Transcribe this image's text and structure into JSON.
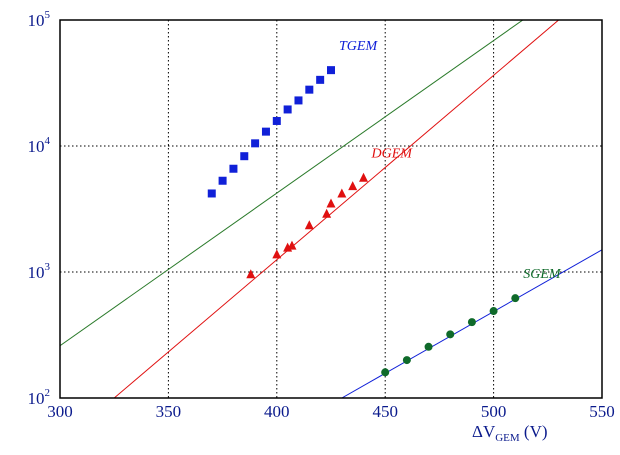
{
  "chart_data": {
    "type": "scatter",
    "xlim": [
      300,
      550
    ],
    "ylim": [
      100,
      100000
    ],
    "ylog": true,
    "grid": true,
    "x_ticks": [
      300,
      350,
      400,
      450,
      500,
      550
    ],
    "y_ticks": [
      {
        "value": 100,
        "base": "10",
        "exp": "2"
      },
      {
        "value": 1000,
        "base": "10",
        "exp": "3"
      },
      {
        "value": 10000,
        "base": "10",
        "exp": "4"
      },
      {
        "value": 100000,
        "base": "10",
        "exp": "5"
      }
    ],
    "xlabel": {
      "delta": "Δ",
      "main": "V",
      "sub": "GEM",
      "unit": " (V)"
    },
    "series": [
      {
        "name": "TGEM",
        "color": "#1020d8",
        "line_color": "#2a7a2a",
        "marker": "square",
        "x": [
          370,
          375,
          380,
          385,
          390,
          395,
          400,
          405,
          410,
          415,
          420,
          425
        ],
        "y": [
          4200,
          5300,
          6600,
          8300,
          10500,
          13000,
          15800,
          19500,
          23000,
          28000,
          33500,
          40000
        ],
        "fit": {
          "x": [
            300,
            520
          ],
          "y": [
            260,
            120000
          ]
        }
      },
      {
        "name": "DGEM",
        "color": "#e01010",
        "line_color": "#e01010",
        "marker": "triangle",
        "x": [
          388,
          400,
          405,
          407,
          415,
          423,
          425,
          430,
          435,
          440
        ],
        "y": [
          960,
          1380,
          1560,
          1620,
          2350,
          2900,
          3500,
          4200,
          4800,
          5600
        ],
        "fit": {
          "x": [
            325,
            530
          ],
          "y": [
            100,
            100000
          ]
        }
      },
      {
        "name": "SGEM",
        "color": "#0f6a2a",
        "line_color": "#1020d8",
        "marker": "circle",
        "x": [
          450,
          460,
          470,
          480,
          490,
          500,
          510
        ],
        "y": [
          160,
          200,
          255,
          320,
          400,
          490,
          620
        ],
        "fit": {
          "x": [
            430,
            550
          ],
          "y": [
            100,
            1500
          ]
        }
      }
    ]
  }
}
